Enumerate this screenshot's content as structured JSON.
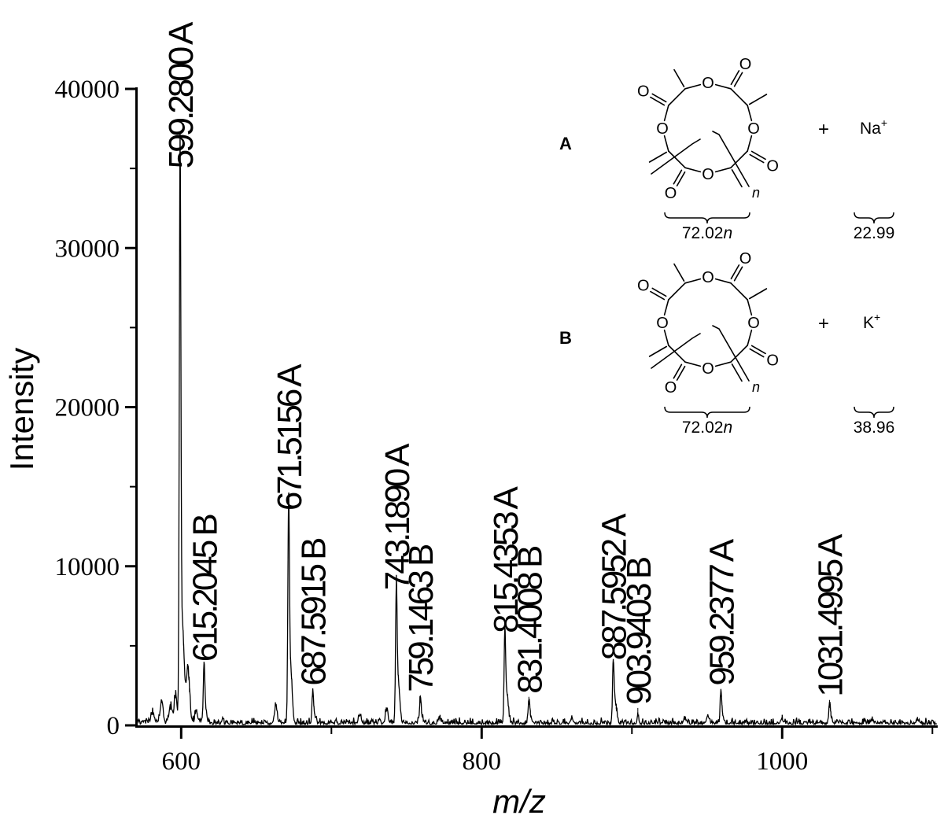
{
  "chart_data": {
    "type": "line",
    "subtype": "mass-spectrum",
    "title": "",
    "xlabel": "m/z",
    "ylabel": "Intensity",
    "xlim": [
      570,
      1103
    ],
    "ylim": [
      0,
      40000
    ],
    "x_major_ticks": [
      600,
      800,
      1000
    ],
    "x_minor_ticks": [
      700,
      900,
      1100
    ],
    "y_major_ticks": [
      0,
      10000,
      20000,
      30000,
      40000
    ],
    "y_minor_ticks": [
      5000,
      15000,
      25000,
      35000
    ],
    "grid": false,
    "legend": null,
    "labeled_peaks": [
      {
        "mz": 599.28,
        "intensity": 34300,
        "label": "599.2800 A",
        "series": "A"
      },
      {
        "mz": 615.2045,
        "intensity": 3300,
        "label": "615.2045 B",
        "series": "B"
      },
      {
        "mz": 671.5156,
        "intensity": 12800,
        "label": "671.5156 A",
        "series": "A"
      },
      {
        "mz": 687.5915,
        "intensity": 1800,
        "label": "687.5915 B",
        "series": "B"
      },
      {
        "mz": 743.189,
        "intensity": 7800,
        "label": "743.1890 A",
        "series": "A"
      },
      {
        "mz": 759.1463,
        "intensity": 1400,
        "label": "759.1463 B",
        "series": "B"
      },
      {
        "mz": 815.4353,
        "intensity": 5100,
        "label": "815.4353 A",
        "series": "A"
      },
      {
        "mz": 831.4008,
        "intensity": 1300,
        "label": "831.4008 B",
        "series": "B"
      },
      {
        "mz": 887.5952,
        "intensity": 3400,
        "label": "887.5952 A",
        "series": "A"
      },
      {
        "mz": 903.9403,
        "intensity": 600,
        "label": "903.9403 B",
        "series": "B"
      },
      {
        "mz": 959.2377,
        "intensity": 1800,
        "label": "959.2377 A",
        "series": "A"
      },
      {
        "mz": 1031.4995,
        "intensity": 1100,
        "label": "1031.4995 A",
        "series": "A"
      }
    ],
    "minor_peaks": [
      [
        581,
        500
      ],
      [
        587,
        1300
      ],
      [
        593,
        900
      ],
      [
        596.3,
        1700
      ],
      [
        600.3,
        4600
      ],
      [
        601.3,
        2300
      ],
      [
        602.3,
        1200
      ],
      [
        604.3,
        2600
      ],
      [
        605.3,
        1100
      ],
      [
        610,
        600
      ],
      [
        616.2,
        900
      ],
      [
        663,
        1100
      ],
      [
        672.5,
        2800
      ],
      [
        673.5,
        1300
      ],
      [
        688.6,
        500
      ],
      [
        719,
        500
      ],
      [
        736.8,
        800
      ],
      [
        744.2,
        2100
      ],
      [
        745.2,
        900
      ],
      [
        760.1,
        400
      ],
      [
        772,
        350
      ],
      [
        816.4,
        1500
      ],
      [
        817.4,
        650
      ],
      [
        832.4,
        400
      ],
      [
        860,
        350
      ],
      [
        888.6,
        1000
      ],
      [
        889.6,
        450
      ],
      [
        935,
        300
      ],
      [
        950.5,
        500
      ],
      [
        960.2,
        500
      ],
      [
        1000,
        250
      ],
      [
        1032.5,
        350
      ],
      [
        1060,
        200
      ],
      [
        1090,
        220
      ]
    ],
    "noise_level": 300
  },
  "inset": {
    "atom_label": "O",
    "repeat_var": "n",
    "structures": [
      {
        "id": "A",
        "plus": "+",
        "ion": "Na",
        "charge": "+",
        "repeat_mass": "72.02",
        "ion_mass": "22.99"
      },
      {
        "id": "B",
        "plus": "+",
        "ion": "K",
        "charge": "+",
        "repeat_mass": "72.02",
        "ion_mass": "38.96"
      }
    ]
  },
  "colors": {
    "foreground": "#000000",
    "background": "#ffffff"
  }
}
